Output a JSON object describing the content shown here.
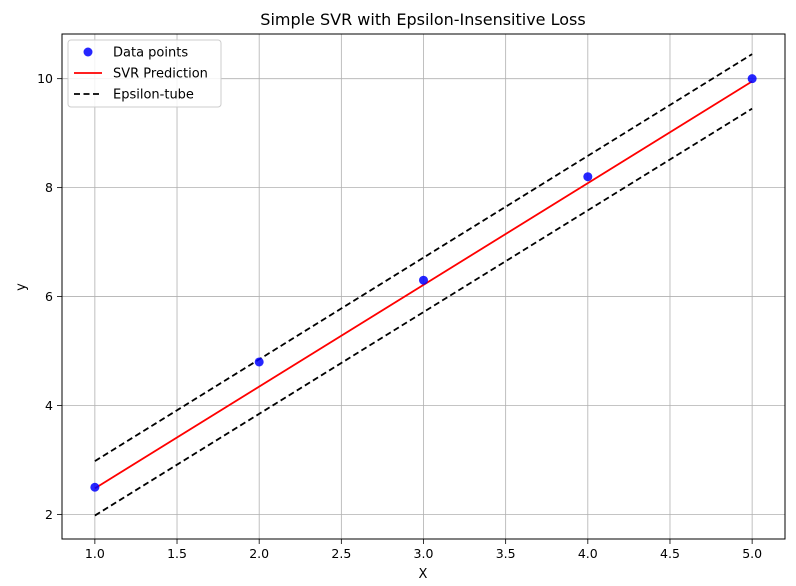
{
  "chart_data": {
    "type": "scatter",
    "title": "Simple SVR with Epsilon-Insensitive Loss",
    "xlabel": "X",
    "ylabel": "y",
    "xlim": [
      0.8,
      5.2
    ],
    "ylim": [
      1.55,
      10.82
    ],
    "xticks": [
      "1.0",
      "1.5",
      "2.0",
      "2.5",
      "3.0",
      "3.5",
      "4.0",
      "4.5",
      "5.0"
    ],
    "yticks": [
      "2",
      "4",
      "6",
      "8",
      "10"
    ],
    "grid": true,
    "legend_position": "top-left",
    "series": [
      {
        "name": "Data points",
        "kind": "scatter",
        "color": "#0000ff",
        "x": [
          1,
          2,
          3,
          4,
          5
        ],
        "y": [
          2.5,
          4.8,
          6.3,
          8.2,
          10.0
        ]
      },
      {
        "name": "SVR Prediction",
        "kind": "line",
        "color": "#ff0000",
        "x": [
          1,
          5
        ],
        "y": [
          2.48,
          9.95
        ]
      },
      {
        "name": "Epsilon-tube",
        "kind": "dashed-line",
        "color": "#000000",
        "lines": [
          {
            "x": [
              1,
              5
            ],
            "y": [
              2.98,
              10.45
            ]
          },
          {
            "x": [
              1,
              5
            ],
            "y": [
              1.98,
              9.45
            ]
          }
        ]
      }
    ]
  }
}
